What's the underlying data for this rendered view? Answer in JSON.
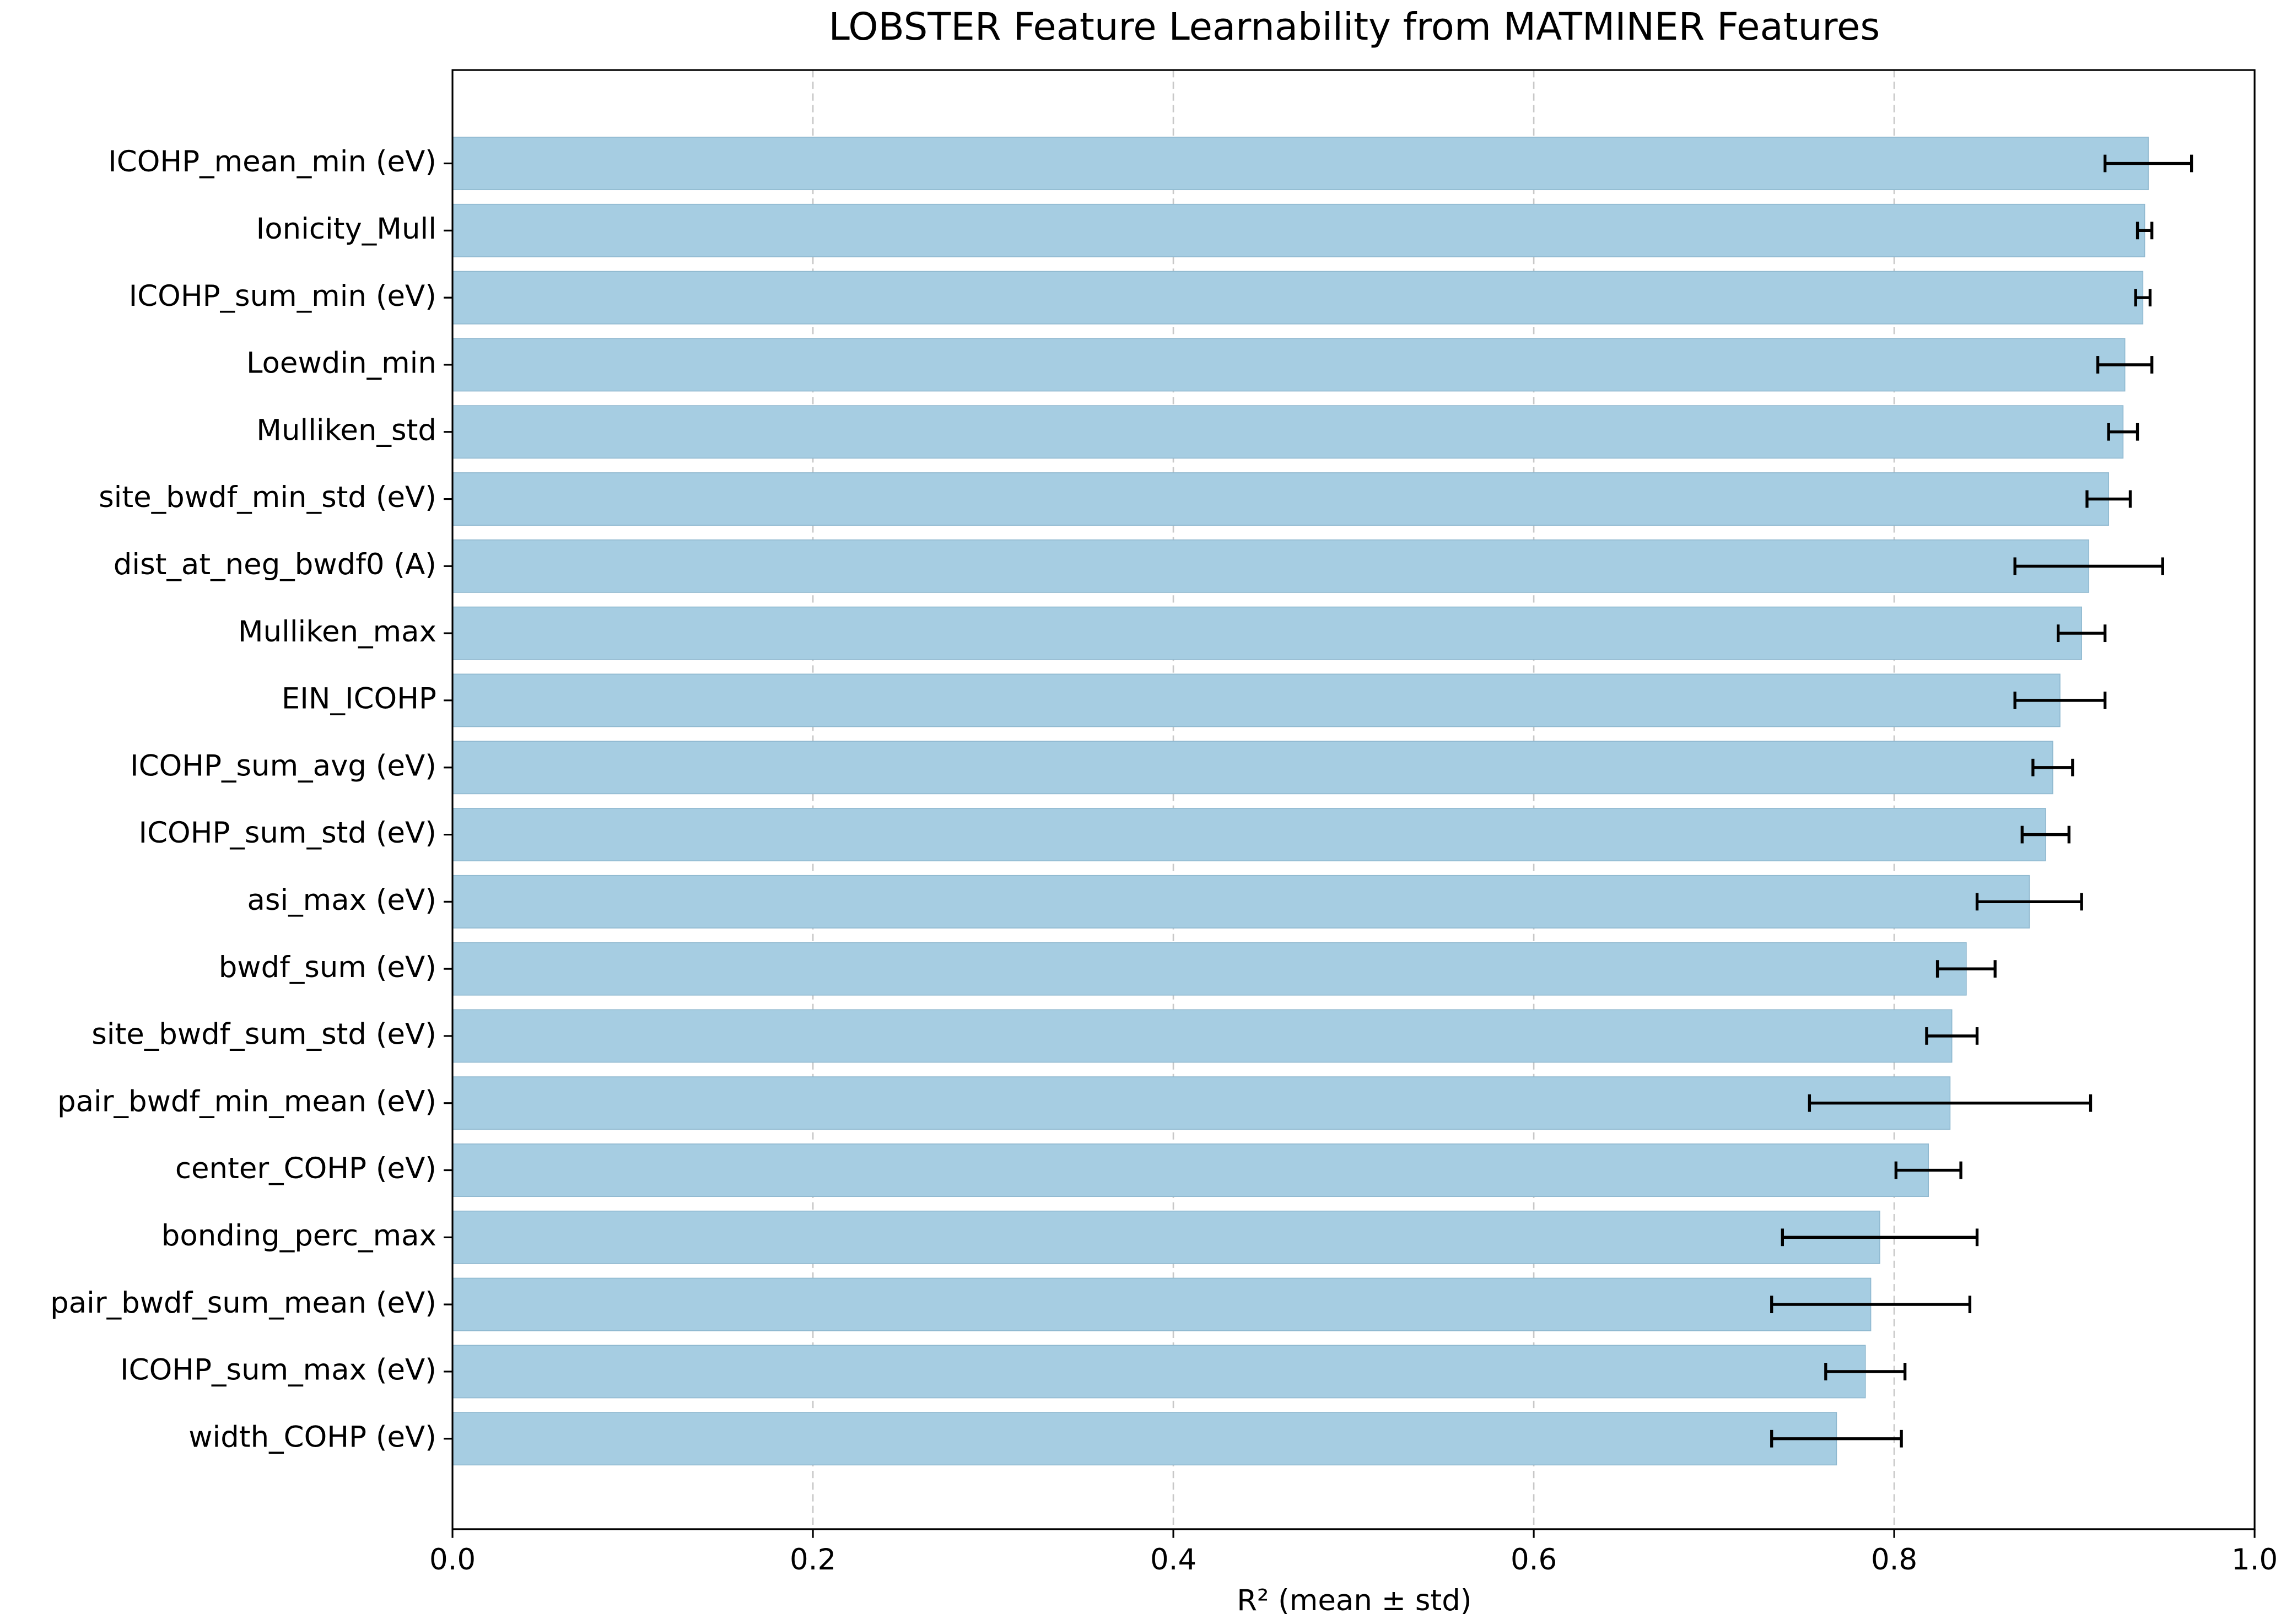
{
  "chart_data": {
    "type": "barh",
    "title": "LOBSTER Feature Learnability from MATMINER Features",
    "xlabel": "R² (mean ± std)",
    "categories": [
      "ICOHP_mean_min (eV)",
      "Ionicity_Mull",
      "ICOHP_sum_min (eV)",
      "Loewdin_min",
      "Mulliken_std",
      "site_bwdf_min_std (eV)",
      "dist_at_neg_bwdf0 (A)",
      "Mulliken_max",
      "EIN_ICOHP",
      "ICOHP_sum_avg (eV)",
      "ICOHP_sum_std (eV)",
      "asi_max (eV)",
      "bwdf_sum (eV)",
      "site_bwdf_sum_std (eV)",
      "pair_bwdf_min_mean (eV)",
      "center_COHP (eV)",
      "bonding_perc_max",
      "pair_bwdf_sum_mean (eV)",
      "ICOHP_sum_max (eV)",
      "width_COHP (eV)"
    ],
    "values": [
      0.941,
      0.939,
      0.938,
      0.928,
      0.927,
      0.919,
      0.908,
      0.904,
      0.892,
      0.888,
      0.884,
      0.875,
      0.84,
      0.832,
      0.831,
      0.819,
      0.792,
      0.787,
      0.784,
      0.768
    ],
    "errors": [
      0.024,
      0.004,
      0.004,
      0.015,
      0.008,
      0.012,
      0.041,
      0.013,
      0.025,
      0.011,
      0.013,
      0.029,
      0.016,
      0.014,
      0.078,
      0.018,
      0.054,
      0.055,
      0.022,
      0.036
    ],
    "color": "#a6cde2",
    "xlim": [
      0,
      1.0
    ],
    "xticks": [
      {
        "value": 0,
        "label": "0.0"
      },
      0.2,
      0.4,
      0.6,
      0.8,
      {
        "value": 1.0,
        "label": "1.0"
      }
    ],
    "grid": true
  }
}
